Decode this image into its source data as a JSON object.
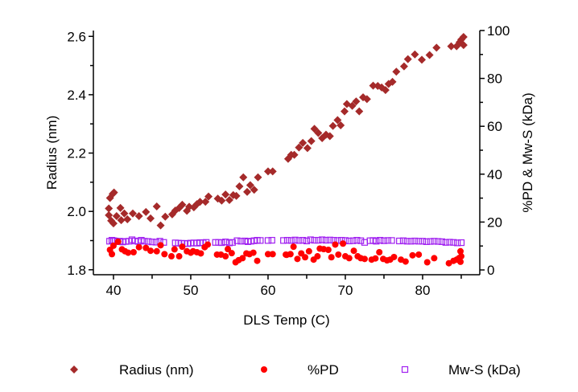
{
  "chart_data": {
    "type": "scatter",
    "title": "",
    "xlabel": "DLS Temp (C)",
    "ylabel": "Radius (nm)",
    "y2label": "%PD & Mw-S (kDa)",
    "xlim": [
      37.4,
      87.4
    ],
    "ylim": [
      1.783,
      2.62
    ],
    "y2lim": [
      -2,
      100
    ],
    "x_ticks": [
      40,
      50,
      60,
      70,
      80
    ],
    "x_tick_labels": [
      "40",
      "50",
      "60",
      "70",
      "80"
    ],
    "y_ticks": [
      1.8,
      2.0,
      2.2,
      2.4,
      2.6
    ],
    "y_tick_labels": [
      "1.8",
      "2.0",
      "2.2",
      "2.4",
      "2.6"
    ],
    "y2_ticks": [
      0,
      20,
      40,
      60,
      80,
      100
    ],
    "y2_tick_labels": [
      "0",
      "20",
      "40",
      "60",
      "80",
      "100"
    ],
    "grid": false,
    "legend_position": "bottom",
    "series": [
      {
        "name": "Radius (nm)",
        "axis": "left",
        "marker": "diamond",
        "color": "#a52a2a",
        "x": [
          39.55,
          39.9,
          40.07,
          39.4,
          39.4,
          39.7,
          40.0,
          40.4,
          40.9,
          41.0,
          41.4,
          41.8,
          42.5,
          43.3,
          44.2,
          44.8,
          45.6,
          46.1,
          46.7,
          47.6,
          48.0,
          48.5,
          48.9,
          49.5,
          49.8,
          50.4,
          50.8,
          51.2,
          51.9,
          52.3,
          53.5,
          54.0,
          54.5,
          55.0,
          55.5,
          55.9,
          56.3,
          56.8,
          57.3,
          57.7,
          58.2,
          58.7,
          60.0,
          60.6,
          62.6,
          63.0,
          63.4,
          64.0,
          64.5,
          65.1,
          65.6,
          66.0,
          66.5,
          67.0,
          67.5,
          68.0,
          68.4,
          69.0,
          69.4,
          69.9,
          70.2,
          70.9,
          71.4,
          71.8,
          72.3,
          72.8,
          73.6,
          74.2,
          74.7,
          75.2,
          75.6,
          76.1,
          76.6,
          77.6,
          78.1,
          79.0,
          79.9,
          80.9,
          81.8,
          83.7,
          84.4,
          84.8,
          85.0,
          85.3,
          85.3
        ],
        "y": [
          2.046,
          2.06,
          2.065,
          2.01,
          1.987,
          1.968,
          1.959,
          1.984,
          2.012,
          1.97,
          1.993,
          1.973,
          1.993,
          1.984,
          1.998,
          1.976,
          2.017,
          1.952,
          1.982,
          1.99,
          2.003,
          2.012,
          2.023,
          2.002,
          2.016,
          2.014,
          2.025,
          2.033,
          2.033,
          2.051,
          2.044,
          2.037,
          2.058,
          2.039,
          2.056,
          2.053,
          2.086,
          2.117,
          2.067,
          2.09,
          2.074,
          2.117,
          2.137,
          2.137,
          2.18,
          2.194,
          2.194,
          2.219,
          2.235,
          2.217,
          2.241,
          2.283,
          2.269,
          2.251,
          2.263,
          2.258,
          2.293,
          2.313,
          2.295,
          2.343,
          2.368,
          2.362,
          2.377,
          2.343,
          2.391,
          2.385,
          2.431,
          2.43,
          2.425,
          2.416,
          2.437,
          2.444,
          2.479,
          2.497,
          2.522,
          2.538,
          2.52,
          2.536,
          2.561,
          2.566,
          2.566,
          2.58,
          2.589,
          2.598,
          2.57
        ]
      },
      {
        "name": "%PD",
        "axis": "right",
        "marker": "filled-circle",
        "color": "#ff0000",
        "x": [
          39.55,
          39.8,
          40.0,
          40.6,
          41.1,
          41.5,
          41.9,
          42.6,
          43.3,
          44.2,
          44.8,
          45.6,
          46.1,
          46.6,
          47.5,
          47.9,
          48.5,
          48.9,
          49.5,
          50.0,
          50.3,
          50.8,
          51.3,
          51.8,
          52.2,
          53.4,
          53.9,
          54.5,
          54.8,
          55.3,
          55.8,
          56.2,
          56.7,
          57.2,
          57.6,
          58.1,
          58.6,
          60.0,
          60.6,
          62.3,
          62.4,
          62.9,
          63.3,
          63.8,
          64.3,
          64.8,
          65.3,
          65.9,
          66.4,
          66.7,
          67.2,
          67.8,
          68.2,
          68.7,
          69.1,
          69.7,
          70.0,
          70.5,
          71.1,
          71.6,
          72.0,
          72.5,
          73.4,
          73.9,
          74.4,
          74.9,
          75.4,
          75.8,
          76.3,
          77.2,
          77.8,
          78.7,
          79.5,
          80.6,
          81.5,
          83.4,
          84.0,
          84.4,
          84.7,
          84.9,
          84.9,
          85.0
        ],
        "y": [
          8.4,
          6.6,
          10.1,
          11.8,
          8.6,
          7.8,
          7.2,
          7.4,
          9.5,
          9.2,
          8.0,
          7.8,
          10.3,
          6.6,
          5.7,
          8.6,
          5.7,
          9.7,
          7.8,
          7.2,
          7.8,
          7.4,
          6.9,
          9.5,
          10.6,
          6.4,
          6.4,
          5.7,
          8.7,
          7.0,
          3.2,
          4.1,
          4.9,
          6.9,
          6.6,
          7.2,
          3.8,
          6.6,
          6.6,
          6.4,
          6.3,
          6.6,
          9.7,
          4.6,
          6.9,
          5.3,
          7.8,
          4.3,
          5.7,
          8.9,
          8.7,
          8.4,
          5.3,
          10.6,
          6.4,
          11.0,
          5.7,
          4.9,
          8.0,
          5.7,
          4.9,
          4.6,
          4.3,
          4.8,
          7.4,
          4.6,
          4.0,
          4.3,
          5.4,
          4.3,
          3.5,
          6.1,
          6.4,
          3.2,
          4.9,
          2.8,
          3.8,
          4.3,
          4.9,
          7.8,
          3.4,
          5.7
        ]
      },
      {
        "name": "Mw-S (kDa)",
        "axis": "right",
        "marker": "open-square",
        "color": "#a020f0",
        "x": [
          39.5,
          39.8,
          40.0,
          40.2,
          40.5,
          40.8,
          41.2,
          41.6,
          42.0,
          42.4,
          42.8,
          43.2,
          43.6,
          44.0,
          44.5,
          45.0,
          45.5,
          46.0,
          46.5,
          48.0,
          48.4,
          48.8,
          49.2,
          49.6,
          50.0,
          50.4,
          50.8,
          51.2,
          51.6,
          52.0,
          53.2,
          53.6,
          54.0,
          54.5,
          55.0,
          55.4,
          56.0,
          56.5,
          57.0,
          57.4,
          57.8,
          58.2,
          58.6,
          59.0,
          60.0,
          60.5,
          62.0,
          62.5,
          63.0,
          63.5,
          64.0,
          64.5,
          65.0,
          65.5,
          66.0,
          66.5,
          67.0,
          67.5,
          68.0,
          68.5,
          69.0,
          69.5,
          70.0,
          70.5,
          71.0,
          71.5,
          72.0,
          72.5,
          73.2,
          73.6,
          74.0,
          74.5,
          75.0,
          75.5,
          76.0,
          77.0,
          77.5,
          78.0,
          78.5,
          79.0,
          79.5,
          80.0,
          80.5,
          81.0,
          81.5,
          82.0,
          82.5,
          83.0,
          83.5,
          84.0,
          84.5,
          85.0
        ],
        "y": [
          12.0,
          12.4,
          12.2,
          12.1,
          11.8,
          12.0,
          11.7,
          11.9,
          12.0,
          12.6,
          12.1,
          11.9,
          12.4,
          12.0,
          11.9,
          11.7,
          11.6,
          12.0,
          11.5,
          11.3,
          11.2,
          11.1,
          11.1,
          11.0,
          11.2,
          11.3,
          11.2,
          11.4,
          11.3,
          11.5,
          11.5,
          11.5,
          11.4,
          11.7,
          11.3,
          11.5,
          12.2,
          12.0,
          12.1,
          11.8,
          12.0,
          12.2,
          12.4,
          12.3,
          12.3,
          12.4,
          12.3,
          12.4,
          12.3,
          12.5,
          12.3,
          12.4,
          12.1,
          12.6,
          12.4,
          12.4,
          12.6,
          12.4,
          12.5,
          12.4,
          12.3,
          12.4,
          12.3,
          12.1,
          12.2,
          12.4,
          12.2,
          11.5,
          12.2,
          12.3,
          12.0,
          12.4,
          12.2,
          12.3,
          12.3,
          12.1,
          12.2,
          12.0,
          12.0,
          12.1,
          12.0,
          12.0,
          11.8,
          11.9,
          12.0,
          11.9,
          11.8,
          11.5,
          11.6,
          11.5,
          11.3,
          11.4
        ]
      }
    ]
  }
}
